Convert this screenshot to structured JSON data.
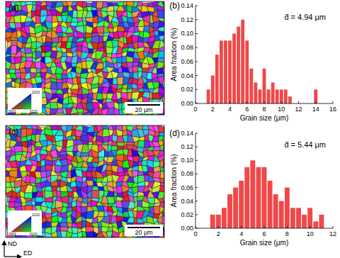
{
  "chart_data": [
    {
      "type": "histogram",
      "x_label": "Grain size (μm)",
      "y_label": "Area fraction (%)",
      "annotations": [
        "(b)",
        "d̄ = 4.94 μm"
      ],
      "color": "#f04848",
      "bins": [
        1.25,
        1.75,
        2.25,
        2.75,
        3.25,
        3.75,
        4.25,
        4.75,
        5.25,
        5.75,
        6.25,
        6.75,
        7.25,
        7.75,
        8.25,
        8.75,
        9.25,
        9.75,
        10.25,
        10.75,
        11.25,
        11.75,
        12.25,
        12.75,
        13.25,
        13.75,
        14.25
      ],
      "values": [
        0.02,
        0.04,
        0.07,
        0.09,
        0.09,
        0.09,
        0.1,
        0.11,
        0.12,
        0.09,
        0.05,
        0.03,
        0.02,
        0.05,
        0.02,
        0.03,
        0.02,
        0.02,
        0.02,
        0.01,
        0,
        0,
        0,
        0,
        0,
        0.02
      ],
      "xlim": [
        0,
        16
      ],
      "xticks": [
        0,
        2,
        4,
        6,
        8,
        10,
        12,
        14,
        16
      ],
      "ylim": [
        0,
        0.14
      ],
      "yticks": [
        {
          "value": 0,
          "label": "0.00"
        },
        {
          "value": 0.02,
          "label": "0.02"
        },
        {
          "value": 0.04,
          "label": "0.04"
        },
        {
          "value": 0.06,
          "label": "0.06"
        },
        {
          "value": 0.08,
          "label": "0.08"
        },
        {
          "value": 0.1,
          "label": "0.10"
        },
        {
          "value": 0.12,
          "label": "0.12"
        },
        {
          "value": 0.14,
          "label": "0.14"
        }
      ]
    },
    {
      "type": "histogram",
      "x_label": "Grain size (μm)",
      "y_label": "Area fraction (%)",
      "annotations": [
        "(d)",
        "d̄ = 5.44 μm"
      ],
      "color": "#f04848",
      "bins": [
        1.25,
        1.75,
        2.25,
        2.75,
        3.25,
        3.75,
        4.25,
        4.75,
        5.25,
        5.75,
        6.25,
        6.75,
        7.25,
        7.75,
        8.25,
        8.75,
        9.25,
        9.75,
        10.25,
        10.75,
        11.25
      ],
      "values": [
        0.02,
        0.02,
        0.03,
        0.05,
        0.06,
        0.07,
        0.09,
        0.1,
        0.09,
        0.09,
        0.07,
        0.05,
        0.04,
        0.06,
        0.03,
        0.03,
        0.02,
        0.03,
        0.01,
        0.02
      ],
      "xlim": [
        0,
        12
      ],
      "xticks": [
        0,
        2,
        4,
        6,
        8,
        10,
        12
      ],
      "ylim": [
        0,
        0.14
      ],
      "yticks": [
        {
          "value": 0,
          "label": "0.00"
        },
        {
          "value": 0.02,
          "label": "0.02"
        },
        {
          "value": 0.04,
          "label": "0.04"
        },
        {
          "value": 0.06,
          "label": "0.06"
        },
        {
          "value": 0.08,
          "label": "0.08"
        },
        {
          "value": 0.1,
          "label": "0.10"
        },
        {
          "value": 0.12,
          "label": "0.12"
        },
        {
          "value": 0.14,
          "label": "0.14"
        }
      ]
    }
  ],
  "maps": [
    {
      "label": "(a)",
      "scale_bar": "20 μm",
      "ipf_labels": [
        "1210",
        "0001",
        "0110"
      ]
    },
    {
      "label": "(c)",
      "scale_bar": "20 μm",
      "ipf_labels": [
        "1210",
        "0001",
        "0110"
      ]
    }
  ],
  "directions": [
    "ND",
    "ED"
  ]
}
